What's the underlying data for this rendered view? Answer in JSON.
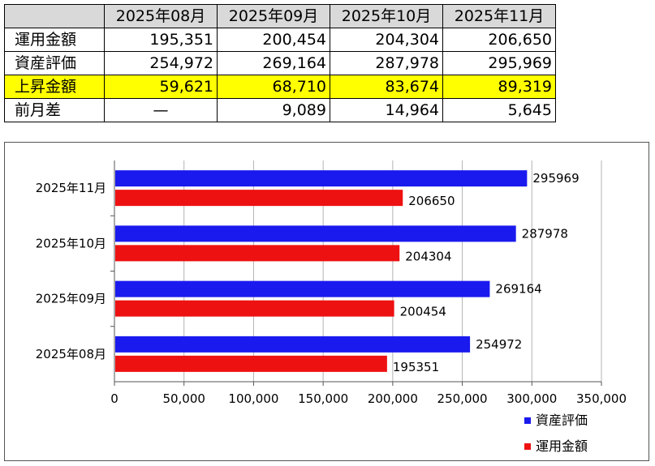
{
  "table": {
    "corner": "",
    "months": [
      "2025年08月",
      "2025年09月",
      "2025年10月",
      "2025年11月"
    ],
    "rows": [
      {
        "label": "運用金額",
        "cells": [
          "195,351",
          "200,454",
          "204,304",
          "206,650"
        ],
        "highlight": false
      },
      {
        "label": "資産評価",
        "cells": [
          "254,972",
          "269,164",
          "287,978",
          "295,969"
        ],
        "highlight": false
      },
      {
        "label": "上昇金額",
        "cells": [
          "59,621",
          "68,710",
          "83,674",
          "89,319"
        ],
        "highlight": true
      },
      {
        "label": "前月差",
        "cells": [
          "—",
          "9,089",
          "14,964",
          "5,645"
        ],
        "highlight": false
      }
    ],
    "highlight_color": "#ffff00",
    "header_color": "#d9d9d9"
  },
  "chart_data": {
    "type": "bar",
    "orientation": "horizontal",
    "categories": [
      "2025年08月",
      "2025年09月",
      "2025年10月",
      "2025年11月"
    ],
    "series": [
      {
        "name": "資産評価",
        "values": [
          254972,
          269164,
          287978,
          295969
        ],
        "color": "#1a1aee"
      },
      {
        "name": "運用金額",
        "values": [
          195351,
          200454,
          204304,
          206650
        ],
        "color": "#ee1111"
      }
    ],
    "xlim": [
      0,
      350000
    ],
    "xticks": [
      0,
      50000,
      100000,
      150000,
      200000,
      250000,
      300000,
      350000
    ],
    "xtick_labels": [
      "0",
      "50,000",
      "100,000",
      "150,000",
      "200,000",
      "250,000",
      "300,000",
      "350,000"
    ],
    "grid": "vertical",
    "legend": "bottom-right",
    "title": "",
    "xlabel": "",
    "ylabel": ""
  }
}
